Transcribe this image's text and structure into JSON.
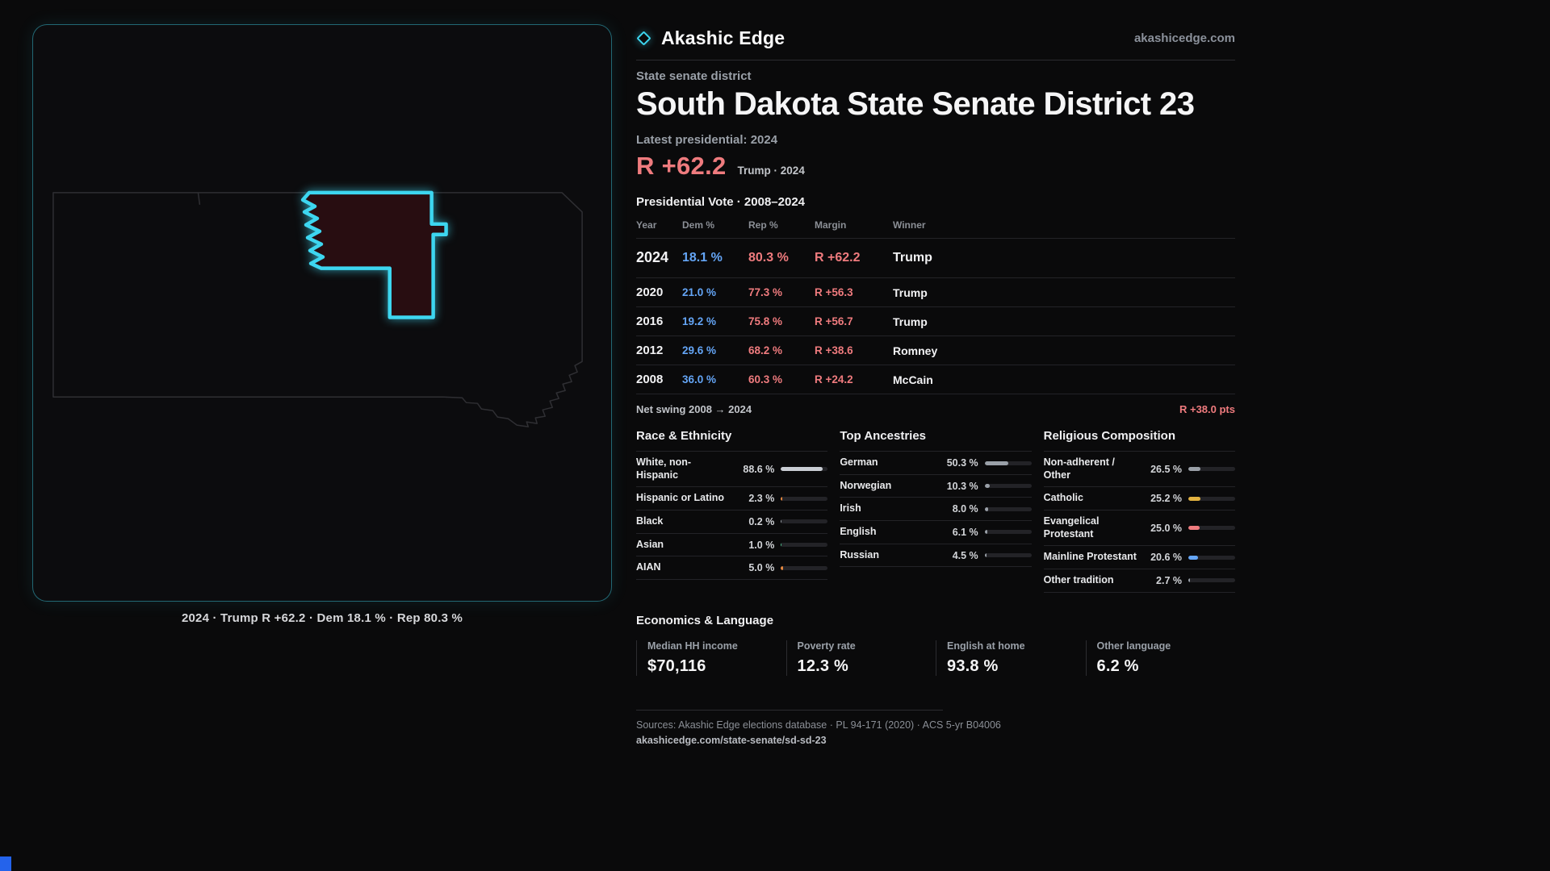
{
  "header": {
    "brand": "Akashic Edge",
    "domain": "akashicedge.com"
  },
  "map": {
    "caption": "2024 · Trump R +62.2 · Dem 18.1 % · Rep 80.3 %"
  },
  "profile": {
    "kicker": "State senate district",
    "title": "South Dakota State Senate District 23",
    "latest_label": "Latest presidential: 2024",
    "margin_value": "R +62.2",
    "margin_context": "Trump · 2024"
  },
  "vote_table": {
    "title": "Presidential Vote · 2008–2024",
    "columns": [
      "Year",
      "Dem %",
      "Rep %",
      "Margin",
      "Winner"
    ],
    "rows": [
      {
        "year": "2024",
        "dem": "18.1 %",
        "rep": "80.3 %",
        "margin": "R +62.2",
        "winner": "Trump"
      },
      {
        "year": "2020",
        "dem": "21.0 %",
        "rep": "77.3 %",
        "margin": "R +56.3",
        "winner": "Trump"
      },
      {
        "year": "2016",
        "dem": "19.2 %",
        "rep": "75.8 %",
        "margin": "R +56.7",
        "winner": "Trump"
      },
      {
        "year": "2012",
        "dem": "29.6 %",
        "rep": "68.2 %",
        "margin": "R +38.6",
        "winner": "Romney"
      },
      {
        "year": "2008",
        "dem": "36.0 %",
        "rep": "60.3 %",
        "margin": "R +24.2",
        "winner": "McCain"
      }
    ]
  },
  "swing": {
    "label": "Net swing 2008 → 2024",
    "value": "R +38.0 pts"
  },
  "demographics": [
    {
      "title": "Race & Ethnicity",
      "rows": [
        {
          "label": "White, non-Hispanic",
          "value": "88.6 %",
          "pct": 88.6,
          "color": "#c9cdd4"
        },
        {
          "label": "Hispanic or Latino",
          "value": "2.3 %",
          "pct": 2.3,
          "color": "#e8893f"
        },
        {
          "label": "Black",
          "value": "0.2 %",
          "pct": 0.2,
          "color": "#9aa0a8"
        },
        {
          "label": "Asian",
          "value": "1.0 %",
          "pct": 1.0,
          "color": "#4fc08d"
        },
        {
          "label": "AIAN",
          "value": "5.0 %",
          "pct": 5.0,
          "color": "#e8893f"
        }
      ]
    },
    {
      "title": "Top Ancestries",
      "rows": [
        {
          "label": "German",
          "value": "50.3 %",
          "pct": 50.3,
          "color": "#9aa0a8"
        },
        {
          "label": "Norwegian",
          "value": "10.3 %",
          "pct": 10.3,
          "color": "#9aa0a8"
        },
        {
          "label": "Irish",
          "value": "8.0 %",
          "pct": 8.0,
          "color": "#9aa0a8"
        },
        {
          "label": "English",
          "value": "6.1 %",
          "pct": 6.1,
          "color": "#9aa0a8"
        },
        {
          "label": "Russian",
          "value": "4.5 %",
          "pct": 4.5,
          "color": "#9aa0a8"
        }
      ]
    },
    {
      "title": "Religious Composition",
      "rows": [
        {
          "label": "Non-adherent / Other",
          "value": "26.5 %",
          "pct": 26.5,
          "color": "#9aa0a8"
        },
        {
          "label": "Catholic",
          "value": "25.2 %",
          "pct": 25.2,
          "color": "#e3b341"
        },
        {
          "label": "Evangelical Protestant",
          "value": "25.0 %",
          "pct": 25.0,
          "color": "#ef7b7e"
        },
        {
          "label": "Mainline Protestant",
          "value": "20.6 %",
          "pct": 20.6,
          "color": "#64a5f6"
        },
        {
          "label": "Other tradition",
          "value": "2.7 %",
          "pct": 2.7,
          "color": "#9aa0a8"
        }
      ]
    }
  ],
  "economics": {
    "title": "Economics & Language",
    "stats": [
      {
        "label": "Median HH income",
        "value": "$70,116"
      },
      {
        "label": "Poverty rate",
        "value": "12.3 %"
      },
      {
        "label": "English at home",
        "value": "93.8 %"
      },
      {
        "label": "Other language",
        "value": "6.2 %"
      }
    ]
  },
  "footer": {
    "sources": "Sources: Akashic Edge elections database · PL 94-171 (2020) · ACS 5-yr B04006",
    "permalink": "akashicedge.com/state-senate/sd-sd-23"
  },
  "colors": {
    "accent_cyan": "#3dd6f0",
    "rep_red": "#ef7b7e",
    "dem_blue": "#64a5f6",
    "corner_accent": "#2463eb"
  }
}
